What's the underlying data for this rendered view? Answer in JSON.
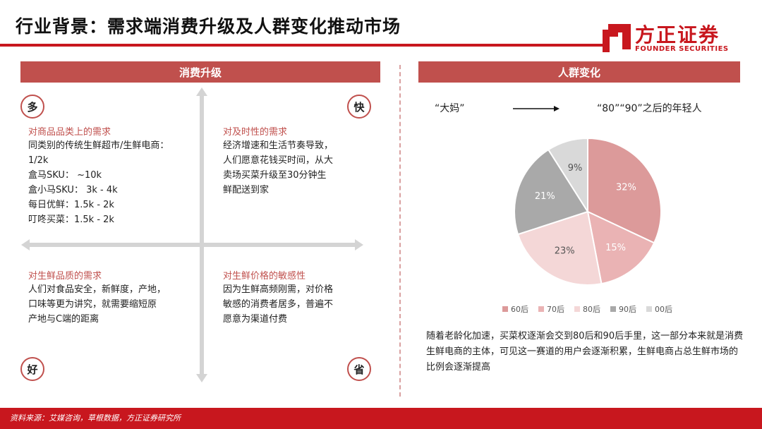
{
  "header": {
    "title": "行业背景：需求端消费升级及人群变化推动市场",
    "logo_cn": "方正证券",
    "logo_en": "FOUNDER SECURITIES",
    "brand_color": "#c8171e"
  },
  "left_panel": {
    "title": "消费升级",
    "corners": {
      "top_left": "多",
      "top_right": "快",
      "bottom_left": "好",
      "bottom_right": "省"
    },
    "quadrants": [
      {
        "heading": "对商品品类上的需求",
        "body": "同类别的传统生鲜超市/生鲜电商：\n1/2k\n盒马SKU：  ~10k\n盒小马SKU：  3k - 4k\n每日优鲜：1.5k - 2k\n叮咚买菜：1.5k - 2k"
      },
      {
        "heading": "对及时性的需求",
        "body": "经济增速和生活节奏导致，\n人们愿意花钱买时间，从大\n卖场买菜升级至30分钟生\n鲜配送到家"
      },
      {
        "heading": "对生鲜品质的需求",
        "body": "人们对食品安全，新鲜度，产地，\n口味等更为讲究，就需要缩短原\n产地与C端的距离"
      },
      {
        "heading": "对生鲜价格的敏感性",
        "body": "因为生鲜高频刚需，对价格\n敏感的消费者居多，普遍不\n愿意为渠道付费"
      }
    ]
  },
  "right_panel": {
    "title": "人群变化",
    "from_label": "“大妈”",
    "to_label": "“80”“90”之后的年轻人",
    "summary": "随着老龄化加速，买菜权逐渐会交到80后和90后手里，这一部分本来就是消费生鲜电商的主体，可见这一赛道的用户会逐渐积累，生鲜电商占总生鲜市场的比例会逐渐提高"
  },
  "chart_data": {
    "type": "pie",
    "categories": [
      "60后",
      "70后",
      "80后",
      "90后",
      "00后"
    ],
    "values": [
      32,
      15,
      23,
      21,
      9
    ],
    "value_labels": [
      "32%",
      "15%",
      "23%",
      "21%",
      "9%"
    ],
    "colors": [
      "#dc9a9a",
      "#eab3b4",
      "#f4d7d7",
      "#a9a9a9",
      "#d9d9d9"
    ],
    "label_colors": [
      "#ffffff",
      "#ffffff",
      "#555555",
      "#ffffff",
      "#555555"
    ],
    "legend_position": "bottom"
  },
  "footer": {
    "source": "资料来源：艾媒咨询，草根数据，方正证券研究所"
  }
}
